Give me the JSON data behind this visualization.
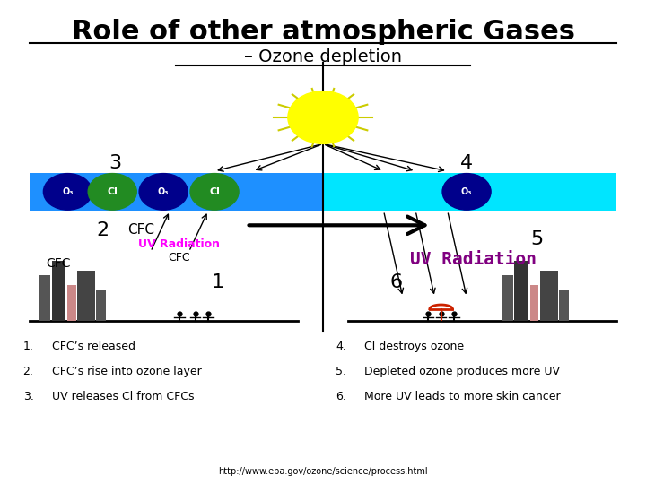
{
  "title": "Role of other atmospheric Gases",
  "subtitle": "– Ozone depletion",
  "bg_color": "#ffffff",
  "ozone_band_left_color": "#1e90ff",
  "ozone_band_right_color": "#00e5ff",
  "sun_color": "#ffff00",
  "sun_spike_color": "#cccc00",
  "o3_circle_color": "#00008b",
  "cl_circle_color": "#228b22",
  "uv_label_left_color": "#ff00ff",
  "uv_label_right_color": "#800080",
  "list_items_left": [
    "CFC’s released",
    "CFC’s rise into ozone layer",
    "UV releases Cl from CFCs"
  ],
  "list_items_right": [
    "Cl destroys ozone",
    "Depleted ozone produces more UV",
    "More UV leads to more skin cancer"
  ],
  "url": "http://www.epa.gov/ozone/science/process.html"
}
